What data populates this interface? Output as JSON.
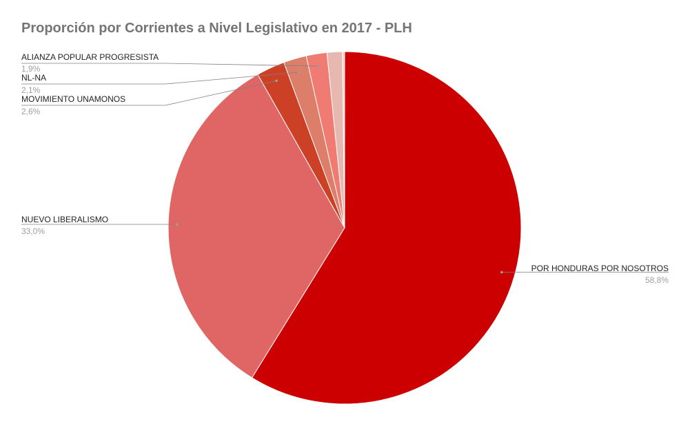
{
  "chart_data": {
    "type": "pie",
    "title": "Proporción por Corrientes a Nivel Legislativo en 2017 - PLH",
    "slices": [
      {
        "label": "POR HONDURAS POR NOSOTROS",
        "value": 58.8,
        "display": "58,8%",
        "color": "#cc0000"
      },
      {
        "label": "NUEVO LIBERALISMO",
        "value": 33.0,
        "display": "33,0%",
        "color": "#e06666"
      },
      {
        "label": "MOVIMIENTO UNAMONOS",
        "value": 2.6,
        "display": "2,6%",
        "color": "#cc4125"
      },
      {
        "label": "NL-NA",
        "value": 2.1,
        "display": "2,1%",
        "color": "#dd7e6b"
      },
      {
        "label": "ALIANZA POPULAR PROGRESISTA",
        "value": 1.9,
        "display": "1,9%",
        "color": "#f07b72"
      },
      {
        "label": "",
        "value": 1.4,
        "display": "",
        "color": "#e6b8af"
      },
      {
        "label": "",
        "value": 0.2,
        "display": "",
        "color": "#f4cccc"
      }
    ],
    "legend": "none",
    "label_placement": "outside-with-leader-lines"
  }
}
